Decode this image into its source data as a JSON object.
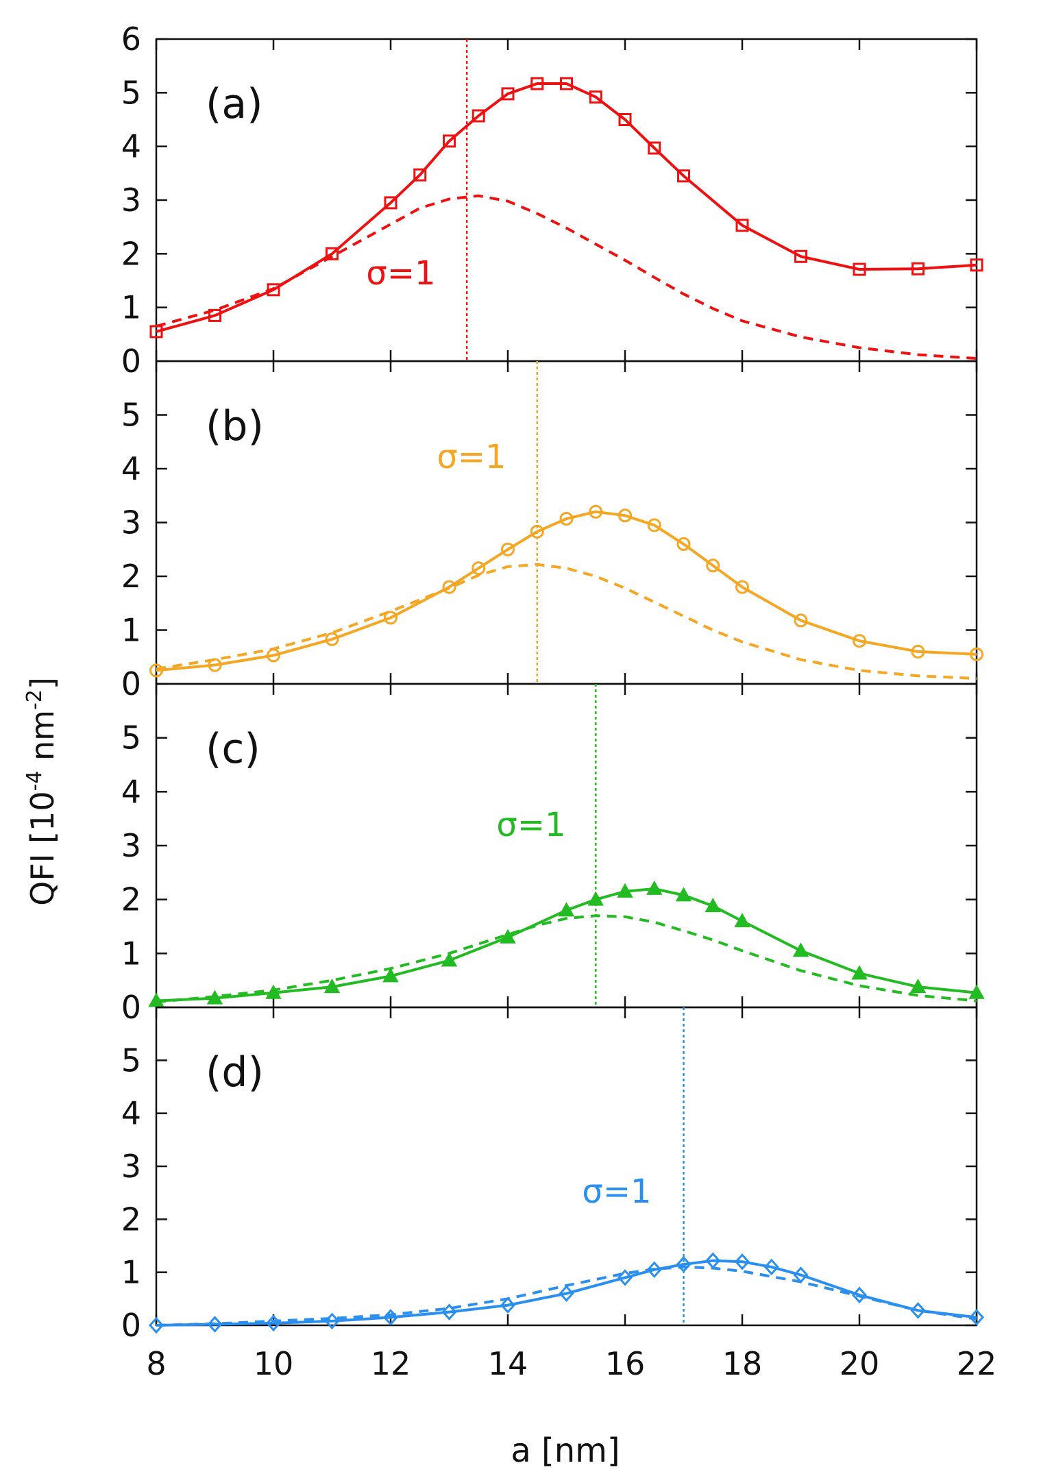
{
  "figure": {
    "ylabel_main": "QFI [10",
    "ylabel_sup1": "-4",
    "ylabel_mid": " nm",
    "ylabel_sup2": "-2",
    "ylabel_end": "]",
    "xlabel": "a [nm]"
  },
  "chart_data": [
    {
      "type": "line",
      "panel_label": "(a)",
      "color": "#ee1111",
      "marker": "square",
      "annotation": "σ=1",
      "vline_x": 13.3,
      "xlim": [
        8,
        22
      ],
      "ylim": [
        0,
        6
      ],
      "xticks": [
        8,
        10,
        12,
        14,
        16,
        18,
        20,
        22
      ],
      "yticks": [
        0,
        1,
        2,
        3,
        4,
        5,
        6
      ],
      "ytick_labels": [
        "0",
        "1",
        "2",
        "3",
        "4",
        "5",
        "6"
      ],
      "series": [
        {
          "style": "solid-markers",
          "x": [
            8,
            9,
            10,
            11,
            12,
            12.5,
            13,
            13.5,
            14,
            14.5,
            15,
            15.5,
            16,
            16.5,
            17,
            18,
            19,
            20,
            21,
            22
          ],
          "y": [
            0.55,
            0.85,
            1.33,
            2.0,
            2.95,
            3.47,
            4.1,
            4.57,
            4.98,
            5.17,
            5.17,
            4.92,
            4.5,
            3.97,
            3.45,
            2.53,
            1.95,
            1.71,
            1.72,
            1.79
          ]
        },
        {
          "style": "dashed",
          "x": [
            8,
            9,
            10,
            11,
            12,
            12.5,
            13,
            13.5,
            14,
            14.5,
            15,
            15.5,
            16,
            16.5,
            17,
            17.5,
            18,
            19,
            20,
            21,
            22
          ],
          "y": [
            0.65,
            0.95,
            1.35,
            1.95,
            2.55,
            2.85,
            3.02,
            3.08,
            2.98,
            2.75,
            2.48,
            2.18,
            1.88,
            1.56,
            1.25,
            0.98,
            0.75,
            0.45,
            0.25,
            0.12,
            0.05
          ]
        }
      ]
    },
    {
      "type": "line",
      "panel_label": "(b)",
      "color": "#f5a623",
      "marker": "circle",
      "annotation": "σ=1",
      "vline_x": 14.5,
      "xlim": [
        8,
        22
      ],
      "ylim": [
        0,
        6
      ],
      "xticks": [
        8,
        10,
        12,
        14,
        16,
        18,
        20,
        22
      ],
      "yticks": [
        0,
        1,
        2,
        3,
        4,
        5
      ],
      "ytick_labels": [
        "0",
        "1",
        "2",
        "3",
        "4",
        "5"
      ],
      "series": [
        {
          "style": "solid-markers",
          "x": [
            8,
            9,
            10,
            11,
            12,
            13,
            13.5,
            14,
            14.5,
            15,
            15.5,
            16,
            16.5,
            17,
            17.5,
            18,
            19,
            20,
            21,
            22
          ],
          "y": [
            0.25,
            0.35,
            0.53,
            0.83,
            1.23,
            1.8,
            2.15,
            2.5,
            2.83,
            3.07,
            3.2,
            3.13,
            2.95,
            2.6,
            2.2,
            1.8,
            1.18,
            0.8,
            0.6,
            0.55
          ]
        },
        {
          "style": "dashed",
          "x": [
            8,
            9,
            10,
            11,
            12,
            13,
            13.5,
            14,
            14.5,
            15,
            15.5,
            16,
            16.5,
            17,
            17.5,
            18,
            19,
            20,
            21,
            22
          ],
          "y": [
            0.28,
            0.45,
            0.65,
            0.95,
            1.35,
            1.78,
            2.02,
            2.18,
            2.22,
            2.15,
            2.0,
            1.78,
            1.52,
            1.26,
            1.0,
            0.78,
            0.45,
            0.25,
            0.15,
            0.1
          ]
        }
      ]
    },
    {
      "type": "line",
      "panel_label": "(c)",
      "color": "#22bb22",
      "marker": "triangle",
      "annotation": "σ=1",
      "vline_x": 15.5,
      "xlim": [
        8,
        22
      ],
      "ylim": [
        0,
        6
      ],
      "xticks": [
        8,
        10,
        12,
        14,
        16,
        18,
        20,
        22
      ],
      "yticks": [
        0,
        1,
        2,
        3,
        4,
        5
      ],
      "ytick_labels": [
        "0",
        "1",
        "2",
        "3",
        "4",
        "5"
      ],
      "series": [
        {
          "style": "solid-markers",
          "x": [
            8,
            9,
            10,
            11,
            12,
            13,
            14,
            15,
            15.5,
            16,
            16.5,
            17,
            17.5,
            18,
            19,
            20,
            21,
            22
          ],
          "y": [
            0.12,
            0.17,
            0.27,
            0.38,
            0.58,
            0.87,
            1.3,
            1.8,
            2.0,
            2.15,
            2.2,
            2.08,
            1.88,
            1.6,
            1.05,
            0.63,
            0.38,
            0.27
          ]
        },
        {
          "style": "dashed",
          "x": [
            8,
            9,
            10,
            11,
            12,
            13,
            14,
            14.5,
            15,
            15.5,
            16,
            16.5,
            17,
            17.5,
            18,
            19,
            20,
            21,
            22
          ],
          "y": [
            0.1,
            0.2,
            0.32,
            0.5,
            0.72,
            1.0,
            1.35,
            1.52,
            1.65,
            1.7,
            1.68,
            1.58,
            1.42,
            1.25,
            1.05,
            0.68,
            0.4,
            0.22,
            0.12
          ]
        }
      ]
    },
    {
      "type": "line",
      "panel_label": "(d)",
      "color": "#2a8fef",
      "marker": "diamond",
      "annotation": "σ=1",
      "vline_x": 17,
      "xlim": [
        8,
        22
      ],
      "ylim": [
        0,
        6
      ],
      "xticks": [
        8,
        10,
        12,
        14,
        16,
        18,
        20,
        22
      ],
      "yticks": [
        0,
        1,
        2,
        3,
        4,
        5
      ],
      "ytick_labels": [
        "0",
        "1",
        "2",
        "3",
        "4",
        "5"
      ],
      "xtick_labels": [
        "8",
        "10",
        "12",
        "14",
        "16",
        "18",
        "20",
        "22"
      ],
      "series": [
        {
          "style": "solid-markers",
          "x": [
            8,
            9,
            10,
            11,
            12,
            13,
            14,
            15,
            16,
            16.5,
            17,
            17.5,
            18,
            18.5,
            19,
            20,
            21,
            22
          ],
          "y": [
            0.0,
            0.02,
            0.04,
            0.08,
            0.15,
            0.25,
            0.38,
            0.6,
            0.9,
            1.05,
            1.15,
            1.22,
            1.2,
            1.1,
            0.95,
            0.57,
            0.28,
            0.15
          ]
        },
        {
          "style": "dashed",
          "x": [
            8,
            9,
            10,
            11,
            12,
            13,
            14,
            15,
            16,
            16.5,
            17,
            17.5,
            18,
            18.5,
            19,
            20,
            21,
            22
          ],
          "y": [
            0.0,
            0.03,
            0.08,
            0.13,
            0.2,
            0.32,
            0.5,
            0.75,
            0.98,
            1.06,
            1.1,
            1.08,
            1.02,
            0.92,
            0.82,
            0.55,
            0.28,
            0.12
          ]
        }
      ]
    }
  ]
}
